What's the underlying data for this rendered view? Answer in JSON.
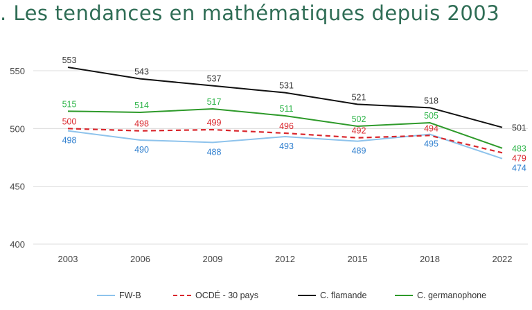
{
  "title": ". Les tendances en mathématiques depuis 2003",
  "chart_data": {
    "type": "line",
    "title": "",
    "xlabel": "",
    "ylabel": "",
    "categories": [
      "2003",
      "2006",
      "2009",
      "2012",
      "2015",
      "2018",
      "2022"
    ],
    "ylim": [
      400,
      550
    ],
    "yticks": [
      "400",
      "450",
      "500",
      "550"
    ],
    "grid": true,
    "legend_position": "bottom",
    "series": [
      {
        "name": "FW-B",
        "values": [
          498,
          490,
          488,
          493,
          489,
          495,
          474
        ],
        "color": "#8ec3ec",
        "label_color": "#2f7fcf",
        "dash": false
      },
      {
        "name": "OCDÉ - 30 pays",
        "values": [
          500,
          498,
          499,
          496,
          492,
          494,
          479
        ],
        "color": "#d9262c",
        "label_color": "#d9262c",
        "dash": true
      },
      {
        "name": "C. flamande",
        "values": [
          553,
          543,
          537,
          531,
          521,
          518,
          501
        ],
        "color": "#111111",
        "label_color": "#333333",
        "dash": false
      },
      {
        "name": "C. germanophone",
        "values": [
          515,
          514,
          517,
          511,
          502,
          505,
          483
        ],
        "color": "#2e9a2a",
        "label_color": "#2fb54a",
        "dash": false
      }
    ]
  }
}
